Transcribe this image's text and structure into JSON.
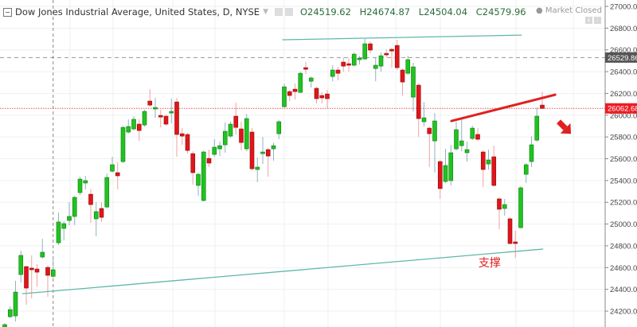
{
  "header": {
    "title": "Dow Jones Industrial Average, United States, D, NYSE",
    "open_label": "O",
    "open": "24519.62",
    "high_label": "H",
    "high": "24674.87",
    "low_label": "L",
    "low": "24504.04",
    "close_label": "C",
    "close": "24579.96",
    "status": "Market Closed",
    "icons": [
      "collapse-icon",
      "dropdown-caret-icon",
      "eye-icon",
      "settings-icon",
      "down-arrow-icon",
      "more-icon"
    ]
  },
  "colors": {
    "up": "#1fc41f",
    "down": "#e0151b",
    "trendline": "#5fb8a8",
    "annotation": "#e02020",
    "last_price": "#ec1c24",
    "ref_price": "#555555"
  },
  "chart_data": {
    "type": "candlestick",
    "title": "Dow Jones Industrial Average, United States, D, NYSE",
    "ylim": [
      24100,
      27050
    ],
    "yticks": [
      24200,
      24400,
      24600,
      24800,
      25000,
      25200,
      25400,
      25600,
      25800,
      26000,
      26200,
      26400,
      26600,
      26800,
      27000
    ],
    "ytick_labels": [
      "24200.00",
      "24400.00",
      "24600.00",
      "24800.00",
      "25000.00",
      "25200.00",
      "25400.00",
      "25600.00",
      "25800.00",
      "26000.00",
      "26200.00",
      "26400.00",
      "26600.00",
      "26800.00",
      "27000.00"
    ],
    "grid": true,
    "ohlc_fields": [
      "open",
      "high",
      "low",
      "close"
    ],
    "candles": [
      [
        24054,
        24090,
        24054,
        24076
      ],
      [
        24149,
        24244,
        24134,
        24214
      ],
      [
        24156,
        24478,
        24105,
        24375
      ],
      [
        24536,
        24755,
        24463,
        24712
      ],
      [
        24609,
        24617,
        24258,
        24412
      ],
      [
        24595,
        24712,
        24317,
        24580
      ],
      [
        24587,
        24631,
        24426,
        24558
      ],
      [
        24697,
        24865,
        24682,
        24741
      ],
      [
        24602,
        24617,
        24331,
        24529
      ],
      [
        24519.62,
        24674.87,
        24504.04,
        24579.96
      ],
      [
        24828,
        25106,
        24807,
        25019
      ],
      [
        24960,
        25026,
        24850,
        25004
      ],
      [
        25033,
        25201,
        24989,
        25070
      ],
      [
        25070,
        25260,
        24989,
        25245
      ],
      [
        25289,
        25435,
        25267,
        25413
      ],
      [
        25377,
        25443,
        25318,
        25399
      ],
      [
        25274,
        25318,
        25011,
        25179
      ],
      [
        25048,
        25201,
        24887,
        25114
      ],
      [
        25143,
        25201,
        25019,
        25062
      ],
      [
        25157,
        25464,
        25143,
        25428
      ],
      [
        25486,
        25618,
        25472,
        25545
      ],
      [
        25472,
        25567,
        25318,
        25443
      ],
      [
        25574,
        25903,
        25560,
        25888
      ],
      [
        25845,
        25962,
        25830,
        25896
      ],
      [
        25874,
        25991,
        25859,
        25962
      ],
      [
        25918,
        25962,
        25764,
        25859
      ],
      [
        25910,
        26049,
        25896,
        26035
      ],
      [
        26130,
        26239,
        26078,
        26093
      ],
      [
        26057,
        26159,
        25976,
        26071
      ],
      [
        25998,
        26049,
        25888,
        25983
      ],
      [
        25991,
        26005,
        25903,
        25918
      ],
      [
        26020,
        26152,
        25925,
        26035
      ],
      [
        26122,
        26159,
        25618,
        25823
      ],
      [
        25830,
        25881,
        25728,
        25808
      ],
      [
        25823,
        25837,
        25647,
        25676
      ],
      [
        25647,
        25669,
        25362,
        25472
      ],
      [
        25355,
        25472,
        25260,
        25457
      ],
      [
        25216,
        25676,
        25209,
        25662
      ],
      [
        25603,
        25684,
        25523,
        25560
      ],
      [
        25640,
        25779,
        25618,
        25706
      ],
      [
        25691,
        25757,
        25625,
        25720
      ],
      [
        25728,
        25932,
        25655,
        25852
      ],
      [
        25808,
        25940,
        25793,
        25918
      ],
      [
        25991,
        26115,
        25823,
        25888
      ],
      [
        25874,
        25940,
        25676,
        25749
      ],
      [
        25691,
        26013,
        25669,
        25969
      ],
      [
        25845,
        25881,
        25494,
        25508
      ],
      [
        25501,
        25611,
        25384,
        25523
      ],
      [
        25647,
        25801,
        25552,
        25662
      ],
      [
        25684,
        25698,
        25435,
        25625
      ],
      [
        25691,
        25749,
        25582,
        25720
      ],
      [
        25830,
        25954,
        25779,
        25940
      ],
      [
        26078,
        26291,
        26071,
        26261
      ],
      [
        26217,
        26232,
        26130,
        26181
      ],
      [
        26239,
        26291,
        26144,
        26217
      ],
      [
        26210,
        26400,
        26203,
        26385
      ],
      [
        26437,
        26488,
        26378,
        26422
      ],
      [
        26312,
        26356,
        26254,
        26342
      ],
      [
        26247,
        26261,
        26108,
        26152
      ],
      [
        26181,
        26210,
        26108,
        26159
      ],
      [
        26195,
        26232,
        26064,
        26152
      ],
      [
        26356,
        26459,
        26312,
        26415
      ],
      [
        26415,
        26444,
        26320,
        26385
      ],
      [
        26488,
        26532,
        26400,
        26451
      ],
      [
        26473,
        26524,
        26400,
        26459
      ],
      [
        26459,
        26576,
        26451,
        26561
      ],
      [
        26510,
        26546,
        26466,
        26524
      ],
      [
        26517,
        26700,
        26510,
        26656
      ],
      [
        26656,
        26678,
        26568,
        26598
      ],
      [
        26429,
        26532,
        26312,
        26459
      ],
      [
        26451,
        26576,
        26400,
        26546
      ],
      [
        26568,
        26605,
        26532,
        26554
      ],
      [
        26605,
        26619,
        26437,
        26590
      ],
      [
        26641,
        26693,
        26415,
        26437
      ],
      [
        26415,
        26429,
        26181,
        26305
      ],
      [
        26385,
        26546,
        26371,
        26510
      ],
      [
        26166,
        26481,
        26035,
        26444
      ],
      [
        26276,
        26291,
        25801,
        25969
      ],
      [
        25940,
        26122,
        25896,
        25976
      ],
      [
        25881,
        25896,
        25523,
        25830
      ],
      [
        25764,
        26020,
        25472,
        25947
      ],
      [
        25574,
        25589,
        25231,
        25326
      ],
      [
        25391,
        25691,
        25377,
        25538
      ],
      [
        25399,
        25728,
        25355,
        25655
      ],
      [
        25691,
        25940,
        25676,
        25867
      ],
      [
        25720,
        25962,
        25669,
        25764
      ],
      [
        25655,
        25757,
        25574,
        25684
      ],
      [
        25786,
        25903,
        25771,
        25881
      ],
      [
        25823,
        25881,
        25764,
        25779
      ],
      [
        25662,
        25676,
        25340,
        25501
      ],
      [
        25552,
        25684,
        25501,
        25589
      ],
      [
        25618,
        25720,
        25340,
        25355
      ],
      [
        25231,
        25245,
        24953,
        25136
      ],
      [
        25143,
        25231,
        25077,
        25179
      ],
      [
        25048,
        25062,
        24814,
        24821
      ],
      [
        24836,
        24938,
        24690,
        24821
      ],
      [
        24967,
        25347,
        24960,
        25333
      ],
      [
        25457,
        25560,
        25377,
        25545
      ],
      [
        25574,
        25808,
        25523,
        25728
      ],
      [
        25771,
        26071,
        25757,
        25991
      ],
      [
        26093,
        26217,
        26057,
        26062.68
      ]
    ],
    "price_lines": [
      {
        "label": "26529.86",
        "value": 26529.86,
        "style": "dashed",
        "color": "#555555"
      },
      {
        "label": "26062.68",
        "value": 26062.68,
        "style": "dotted",
        "color": "#ec1c24"
      }
    ],
    "crosshair_candle_index": 9,
    "trendlines": [
      {
        "name": "resistance",
        "from": [
          51.7,
          26693
        ],
        "to": [
          96.1,
          26736
        ],
        "color": "#5fb8a8"
      },
      {
        "name": "support",
        "from": [
          3.3,
          24360
        ],
        "to": [
          100.1,
          24770
        ],
        "color": "#5fb8a8"
      },
      {
        "name": "rising-red",
        "from": [
          83.1,
          25947
        ],
        "to": [
          102.4,
          26188
        ],
        "color": "#e02020"
      }
    ],
    "annotations": [
      {
        "text": "支撑",
        "at": [
          90.2,
          24610
        ],
        "color": "#e02020"
      },
      {
        "arrow": "down-right",
        "at": [
          104.3,
          25880
        ],
        "color": "#e02020"
      }
    ]
  }
}
